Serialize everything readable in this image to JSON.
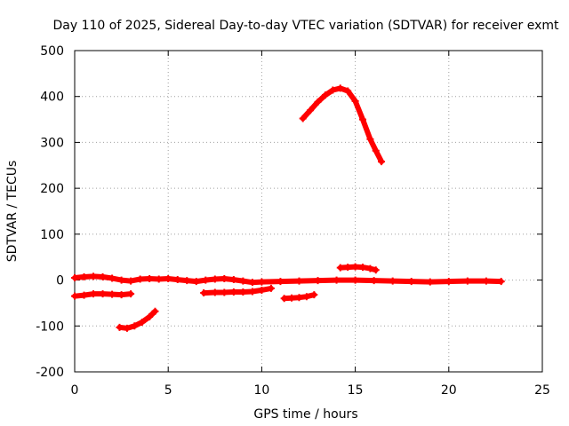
{
  "chart_data": {
    "type": "scatter",
    "title": "Day 110 of 2025, Sidereal Day-to-day VTEC variation (SDTVAR) for receiver exmt",
    "xlabel": "GPS time / hours",
    "ylabel": "SDTVAR / TECUs",
    "xlim": [
      0,
      25
    ],
    "ylim": [
      -200,
      500
    ],
    "x_ticks": [
      0,
      5,
      10,
      15,
      20,
      25
    ],
    "y_ticks": [
      -200,
      -100,
      0,
      100,
      200,
      300,
      400,
      500
    ],
    "x_tick_labels": [
      "0",
      "5",
      "10",
      "15",
      "20",
      "25"
    ],
    "y_tick_labels": [
      "-200",
      "-100",
      "0",
      "100",
      "200",
      "300",
      "400",
      "500"
    ],
    "grid": true,
    "legend": "none",
    "marker": "plus",
    "color": "#ff0000",
    "series": [
      {
        "name": "track-1",
        "x": [
          0,
          0.5,
          1,
          1.5,
          2,
          2.5,
          3,
          3.5,
          4,
          4.5,
          5,
          5.5,
          6,
          6.5,
          7,
          7.5,
          8,
          8.5,
          9,
          9.5,
          10,
          11,
          12,
          13,
          14,
          15,
          16,
          17,
          18,
          19,
          20,
          21,
          22,
          22.8
        ],
        "y": [
          5,
          7,
          8,
          7,
          4,
          0,
          -2,
          2,
          3,
          2,
          3,
          1,
          -1,
          -3,
          0,
          2,
          3,
          1,
          -2,
          -5,
          -4,
          -3,
          -2,
          -1,
          0,
          0,
          -1,
          -2,
          -3,
          -4,
          -3,
          -2,
          -2,
          -3
        ]
      },
      {
        "name": "track-2",
        "x": [
          0,
          0.5,
          1,
          1.5,
          2,
          2.5,
          3
        ],
        "y": [
          -35,
          -33,
          -30,
          -30,
          -31,
          -32,
          -30
        ]
      },
      {
        "name": "track-3",
        "x": [
          2.4,
          2.8,
          3.2,
          3.6,
          4.0,
          4.3
        ],
        "y": [
          -103,
          -105,
          -100,
          -92,
          -80,
          -68
        ]
      },
      {
        "name": "track-4",
        "x": [
          6.9,
          7.5,
          8,
          8.5,
          9,
          9.5,
          10,
          10.5
        ],
        "y": [
          -28,
          -27,
          -27,
          -26,
          -26,
          -25,
          -22,
          -18
        ]
      },
      {
        "name": "track-5",
        "x": [
          11.2,
          11.6,
          12,
          12.4,
          12.8
        ],
        "y": [
          -40,
          -39,
          -38,
          -36,
          -32
        ]
      },
      {
        "name": "track-6",
        "x": [
          12.2,
          12.6,
          13,
          13.4,
          13.8,
          14.2,
          14.6,
          15,
          15.4,
          15.8,
          16.1,
          16.4
        ],
        "y": [
          352,
          370,
          388,
          403,
          414,
          418,
          412,
          390,
          350,
          307,
          282,
          258
        ]
      },
      {
        "name": "track-7",
        "x": [
          14.2,
          14.6,
          15,
          15.4,
          15.8,
          16.1
        ],
        "y": [
          27,
          28,
          29,
          28,
          25,
          22
        ]
      }
    ]
  }
}
